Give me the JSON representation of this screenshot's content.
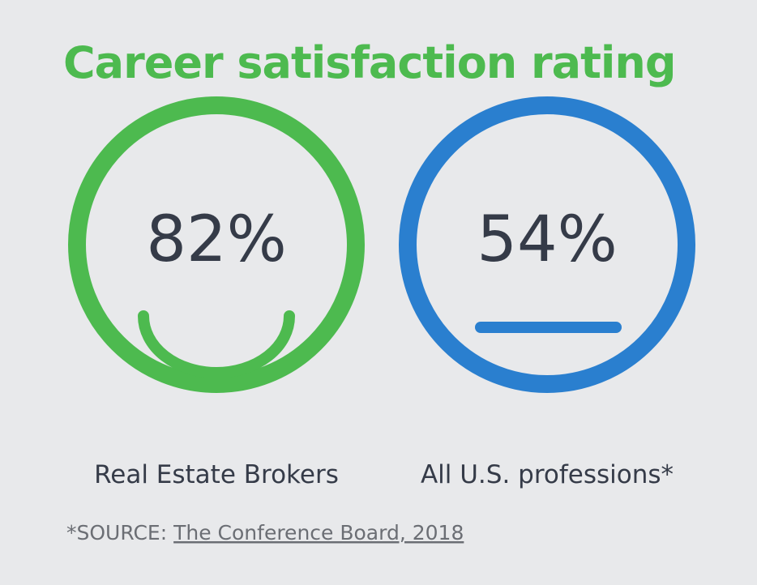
{
  "header": {
    "title": "Career satisfaction rating"
  },
  "items": [
    {
      "value": "82%",
      "label": "Real Estate Brokers"
    },
    {
      "value": "54%",
      "label": "All U.S. professions*"
    }
  ],
  "source": {
    "prefix": "*SOURCE:",
    "link": "The Conference Board, 2018"
  }
}
